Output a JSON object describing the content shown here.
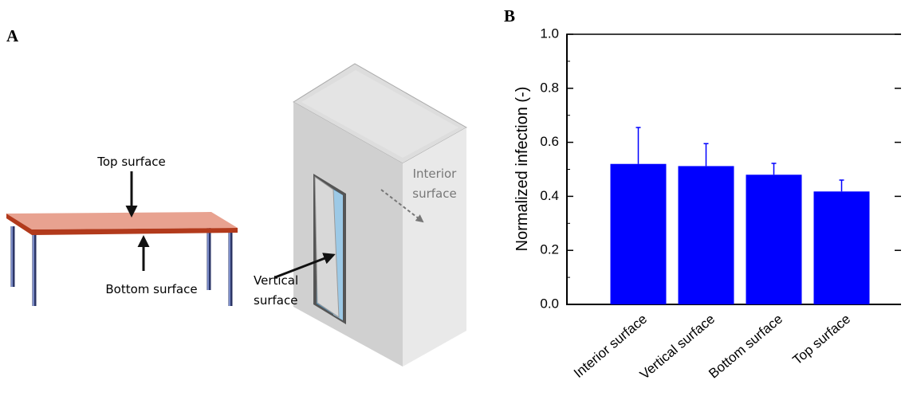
{
  "panels": {
    "a": "A",
    "b": "B"
  },
  "illustration": {
    "top_surface": "Top surface",
    "bottom_surface": "Bottom surface",
    "vertical_surface": [
      "Vertical",
      "surface"
    ],
    "interior_surface": [
      "Interior",
      "surface"
    ]
  },
  "chart_data": {
    "type": "bar",
    "y_label": "Normalized infection (-)",
    "categories": [
      "Interior surface",
      "Vertical surface",
      "Bottom surface",
      "Top surface"
    ],
    "series": [
      {
        "color": "#0000ff",
        "values": [
          0.52,
          0.512,
          0.48,
          0.418
        ],
        "errors": [
          0.135,
          0.083,
          0.042,
          0.042
        ]
      }
    ],
    "ylim": [
      0,
      1.0
    ],
    "yticks": [
      {
        "value": 0,
        "label": "0.0"
      },
      0.2,
      0.4,
      0.6,
      0.8,
      {
        "value": 1,
        "label": "1.0"
      }
    ],
    "grid": false
  }
}
